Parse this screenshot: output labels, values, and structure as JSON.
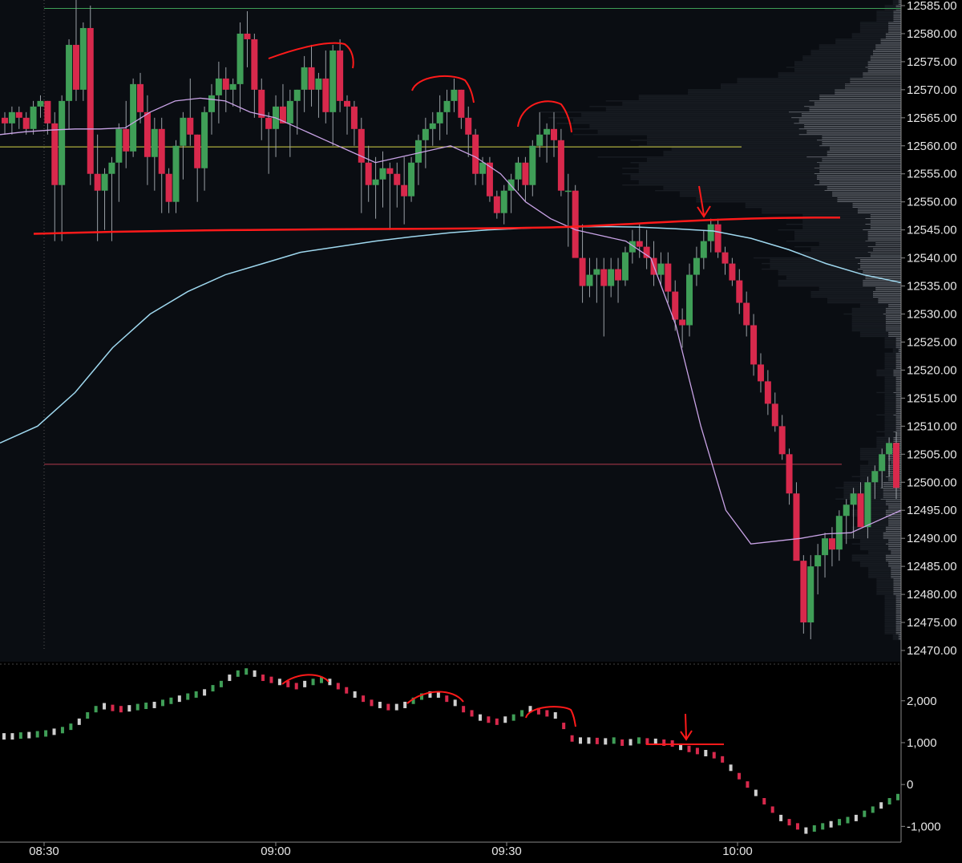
{
  "colors": {
    "background": "#000000",
    "price_pane": "#0a0d12",
    "profile": "#1a1e25",
    "up": "#3f9e57",
    "down": "#d8294c",
    "vwap": "#c9a3e6",
    "sma": "#9fd8ef",
    "yellow_line": "#d6d64a",
    "green_line": "#3f9e57",
    "pink_line": "#b33a4d",
    "annotation": "#ff1a1a",
    "volume_bars": "#e0e0e8",
    "text": "#e6e6e6"
  },
  "chart_data": [
    {
      "type": "candlestick",
      "pane": "price",
      "title": "",
      "ylim": [
        12468,
        12586
      ],
      "y_ticks": [
        "12585.00",
        "12580.00",
        "12575.00",
        "12570.00",
        "12565.00",
        "12560.00",
        "12555.00",
        "12550.00",
        "12545.00",
        "12540.00",
        "12535.00",
        "12530.00",
        "12525.00",
        "12520.00",
        "12515.00",
        "12510.00",
        "12505.00",
        "12500.00",
        "12495.00",
        "12490.00",
        "12485.00",
        "12480.00",
        "12475.00",
        "12470.00"
      ],
      "x_ticks": [
        "08:30",
        "09:00",
        "09:30",
        "10:00"
      ],
      "horizontal_lines": [
        {
          "name": "green-level",
          "price": 12584.5,
          "color": "#3f9e57"
        },
        {
          "name": "yellow-level",
          "price": 12559.8,
          "color": "#d6d64a"
        },
        {
          "name": "pink-level",
          "price": 12503.2,
          "color": "#b33a4d"
        }
      ],
      "candles_ohlc": [
        [
          12565,
          12566,
          12562,
          12564
        ],
        [
          12564,
          12567,
          12562,
          12566
        ],
        [
          12566,
          12567,
          12563,
          12565
        ],
        [
          12565,
          12566,
          12562,
          12563
        ],
        [
          12563,
          12568,
          12562,
          12567
        ],
        [
          12567,
          12569,
          12565,
          12568
        ],
        [
          12568,
          12568,
          12562,
          12564
        ],
        [
          12564,
          12566,
          12543,
          12553
        ],
        [
          12553,
          12569,
          12543,
          12568
        ],
        [
          12568,
          12579,
          12563,
          12578
        ],
        [
          12578,
          12586,
          12568,
          12570
        ],
        [
          12570,
          12582,
          12568,
          12581
        ],
        [
          12581,
          12585,
          12553,
          12555
        ],
        [
          12555,
          12562,
          12543,
          12552
        ],
        [
          12552,
          12556,
          12545,
          12555
        ],
        [
          12555,
          12558,
          12543,
          12557
        ],
        [
          12557,
          12564,
          12550,
          12563
        ],
        [
          12563,
          12568,
          12556,
          12559
        ],
        [
          12559,
          12572,
          12558,
          12571
        ],
        [
          12571,
          12573,
          12564,
          12566
        ],
        [
          12566,
          12569,
          12553,
          12558
        ],
        [
          12558,
          12565,
          12552,
          12563
        ],
        [
          12563,
          12565,
          12548,
          12555
        ],
        [
          12555,
          12556,
          12548,
          12550
        ],
        [
          12550,
          12561,
          12548,
          12560
        ],
        [
          12560,
          12566,
          12554,
          12565
        ],
        [
          12565,
          12572,
          12560,
          12562
        ],
        [
          12562,
          12562,
          12550,
          12556
        ],
        [
          12556,
          12567,
          12552,
          12566
        ],
        [
          12566,
          12571,
          12562,
          12569
        ],
        [
          12569,
          12575,
          12564,
          12572
        ],
        [
          12572,
          12574,
          12566,
          12570
        ],
        [
          12570,
          12572,
          12567,
          12571
        ],
        [
          12571,
          12582,
          12566,
          12580
        ],
        [
          12580,
          12584,
          12574,
          12579
        ],
        [
          12579,
          12580,
          12565,
          12570
        ],
        [
          12570,
          12572,
          12561,
          12565
        ],
        [
          12565,
          12566,
          12555,
          12563
        ],
        [
          12563,
          12569,
          12558,
          12567
        ],
        [
          12567,
          12571,
          12564,
          12564
        ],
        [
          12564,
          12570,
          12558,
          12568
        ],
        [
          12568,
          12570,
          12562,
          12570
        ],
        [
          12570,
          12576,
          12566,
          12574
        ],
        [
          12574,
          12578,
          12567,
          12570
        ],
        [
          12570,
          12573,
          12565,
          12572
        ],
        [
          12572,
          12577,
          12564,
          12566
        ],
        [
          12566,
          12578,
          12560,
          12577
        ],
        [
          12577,
          12579,
          12566,
          12568
        ],
        [
          12568,
          12569,
          12562,
          12567
        ],
        [
          12567,
          12568,
          12560,
          12563
        ],
        [
          12563,
          12565,
          12548,
          12557
        ],
        [
          12557,
          12560,
          12550,
          12553
        ],
        [
          12553,
          12558,
          12547,
          12554
        ],
        [
          12554,
          12559,
          12549,
          12556
        ],
        [
          12556,
          12557,
          12545,
          12555
        ],
        [
          12555,
          12557,
          12549,
          12553
        ],
        [
          12553,
          12558,
          12546,
          12551
        ],
        [
          12551,
          12558,
          12550,
          12557
        ],
        [
          12557,
          12562,
          12553,
          12561
        ],
        [
          12561,
          12565,
          12556,
          12563
        ],
        [
          12563,
          12566,
          12560,
          12564
        ],
        [
          12564,
          12569,
          12561,
          12566
        ],
        [
          12566,
          12570,
          12562,
          12568
        ],
        [
          12568,
          12572,
          12566,
          12570
        ],
        [
          12570,
          12570,
          12563,
          12565
        ],
        [
          12565,
          12567,
          12558,
          12562
        ],
        [
          12562,
          12563,
          12553,
          12555
        ],
        [
          12555,
          12558,
          12553,
          12557
        ],
        [
          12557,
          12558,
          12550,
          12551
        ],
        [
          12551,
          12552,
          12547,
          12548
        ],
        [
          12548,
          12553,
          12546,
          12552
        ],
        [
          12552,
          12555,
          12548,
          12554
        ],
        [
          12554,
          12558,
          12552,
          12557
        ],
        [
          12557,
          12558,
          12550,
          12553
        ],
        [
          12553,
          12561,
          12551,
          12560
        ],
        [
          12560,
          12566,
          12558,
          12562
        ],
        [
          12562,
          12564,
          12557,
          12563
        ],
        [
          12563,
          12566,
          12558,
          12561
        ],
        [
          12561,
          12563,
          12551,
          12552
        ],
        [
          12552,
          12555,
          12542,
          12552
        ],
        [
          12552,
          12553,
          12542,
          12540
        ],
        [
          12540,
          12546,
          12532,
          12535
        ],
        [
          12535,
          12540,
          12533,
          12537
        ],
        [
          12537,
          12540,
          12532,
          12538
        ],
        [
          12538,
          12540,
          12526,
          12535
        ],
        [
          12535,
          12540,
          12533,
          12538
        ],
        [
          12538,
          12540,
          12532,
          12536
        ],
        [
          12536,
          12542,
          12535,
          12541
        ],
        [
          12541,
          12545,
          12539,
          12543
        ],
        [
          12543,
          12546,
          12540,
          12542
        ],
        [
          12542,
          12545,
          12538,
          12540
        ],
        [
          12540,
          12543,
          12535,
          12537
        ],
        [
          12537,
          12541,
          12535,
          12539
        ],
        [
          12539,
          12541,
          12532,
          12534
        ],
        [
          12534,
          12536,
          12527,
          12529
        ],
        [
          12529,
          12531,
          12524,
          12528
        ],
        [
          12528,
          12539,
          12526,
          12537
        ],
        [
          12537,
          12542,
          12535,
          12540
        ],
        [
          12540,
          12545,
          12538,
          12543
        ],
        [
          12543,
          12547,
          12541,
          12546
        ],
        [
          12546,
          12547,
          12540,
          12541
        ],
        [
          12541,
          12542,
          12537,
          12539
        ],
        [
          12539,
          12540,
          12535,
          12536
        ],
        [
          12536,
          12538,
          12530,
          12532
        ],
        [
          12532,
          12534,
          12526,
          12528
        ],
        [
          12528,
          12530,
          12519,
          12521
        ],
        [
          12521,
          12523,
          12516,
          12518
        ],
        [
          12518,
          12520,
          12512,
          12514
        ],
        [
          12514,
          12516,
          12509,
          12510
        ],
        [
          12510,
          12512,
          12504,
          12505
        ],
        [
          12505,
          12506,
          12496,
          12498
        ],
        [
          12498,
          12500,
          12488,
          12486
        ],
        [
          12486,
          12487,
          12473,
          12475
        ],
        [
          12475,
          12487,
          12472,
          12485
        ],
        [
          12485,
          12489,
          12480,
          12487
        ],
        [
          12487,
          12491,
          12483,
          12490
        ],
        [
          12490,
          12492,
          12485,
          12488
        ],
        [
          12488,
          12495,
          12486,
          12494
        ],
        [
          12494,
          12497,
          12489,
          12496
        ],
        [
          12496,
          12499,
          12490,
          12498
        ],
        [
          12498,
          12500,
          12494,
          12492
        ],
        [
          12492,
          12501,
          12490,
          12500
        ],
        [
          12500,
          12503,
          12497,
          12502
        ],
        [
          12502,
          12506,
          12499,
          12505
        ],
        [
          12505,
          12508,
          12501,
          12507
        ],
        [
          12507,
          12509,
          12497,
          12499
        ]
      ],
      "sma_line": [
        12507,
        12510,
        12516,
        12524,
        12530,
        12534,
        12537,
        12539,
        12541,
        12542,
        12543,
        12543.8,
        12544.5,
        12545,
        12545.3,
        12545.5,
        12545.6,
        12545.5,
        12545.2,
        12544.8,
        12543.5,
        12541.5,
        12539,
        12537,
        12535.6
      ],
      "vwap_line": [
        12562,
        12562.5,
        12562.8,
        12563,
        12563,
        12563.2,
        12566,
        12568,
        12568.5,
        12568,
        12566,
        12565,
        12563,
        12561,
        12559,
        12557,
        12558,
        12559,
        12560,
        12558,
        12555,
        12550,
        12547,
        12545,
        12544,
        12543,
        12540,
        12528,
        12510,
        12495,
        12489,
        12489.5,
        12490,
        12490.8,
        12491,
        12493,
        12495
      ],
      "annotations": [
        {
          "type": "arc",
          "pane": "price",
          "label": "top-1"
        },
        {
          "type": "arc",
          "pane": "price",
          "label": "top-2"
        },
        {
          "type": "arc",
          "pane": "price",
          "label": "top-3"
        },
        {
          "type": "arrow",
          "pane": "price",
          "price": 12547,
          "label": "arrow-down"
        },
        {
          "type": "level",
          "pane": "price",
          "price": 12545,
          "label": "red-level"
        }
      ]
    },
    {
      "type": "bar",
      "pane": "indicator",
      "ylim": [
        -1300,
        2800
      ],
      "y_ticks": [
        "2,000",
        "1,000",
        "0",
        "-1,000"
      ],
      "values_note": "cumulative delta style trace",
      "values": [
        1150,
        1150,
        1170,
        1180,
        1200,
        1220,
        1260,
        1300,
        1380,
        1500,
        1650,
        1800,
        1870,
        1830,
        1800,
        1820,
        1850,
        1880,
        1900,
        1950,
        2000,
        2050,
        2100,
        2150,
        2200,
        2300,
        2400,
        2550,
        2650,
        2700,
        2650,
        2550,
        2500,
        2450,
        2400,
        2350,
        2400,
        2450,
        2500,
        2450,
        2350,
        2250,
        2150,
        2050,
        1950,
        1900,
        1850,
        1850,
        1900,
        2000,
        2100,
        2150,
        2150,
        2050,
        1950,
        1800,
        1700,
        1600,
        1550,
        1500,
        1550,
        1600,
        1700,
        1800,
        1750,
        1700,
        1650,
        1400,
        1100,
        1050,
        1050,
        1040,
        1030,
        1050,
        1000,
        1010,
        1050,
        1030,
        1020,
        1000,
        980,
        900,
        850,
        800,
        750,
        700,
        600,
        400,
        200,
        0,
        -200,
        -400,
        -600,
        -800,
        -900,
        -1000,
        -1100,
        -1050,
        -1000,
        -950,
        -900,
        -850,
        -800,
        -700,
        -600,
        -500,
        -400,
        -300
      ]
    }
  ]
}
